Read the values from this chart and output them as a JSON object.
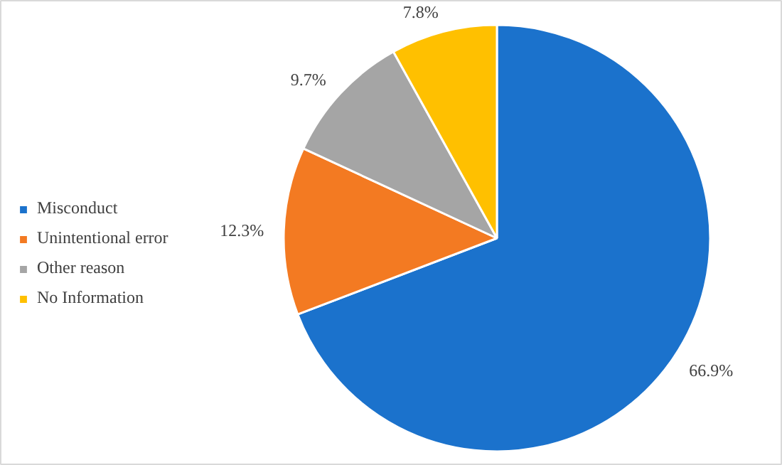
{
  "chart_data": {
    "type": "pie",
    "categories": [
      "Misconduct",
      "Unintentional error",
      "Other reason",
      "No Information"
    ],
    "values": [
      66.9,
      12.3,
      9.7,
      7.8
    ],
    "colors": [
      "#1b72cc",
      "#f37a22",
      "#a5a5a5",
      "#ffc000"
    ],
    "value_labels": [
      "66.9%",
      "12.3%",
      "9.7%",
      "7.8%"
    ],
    "legend": "left"
  }
}
